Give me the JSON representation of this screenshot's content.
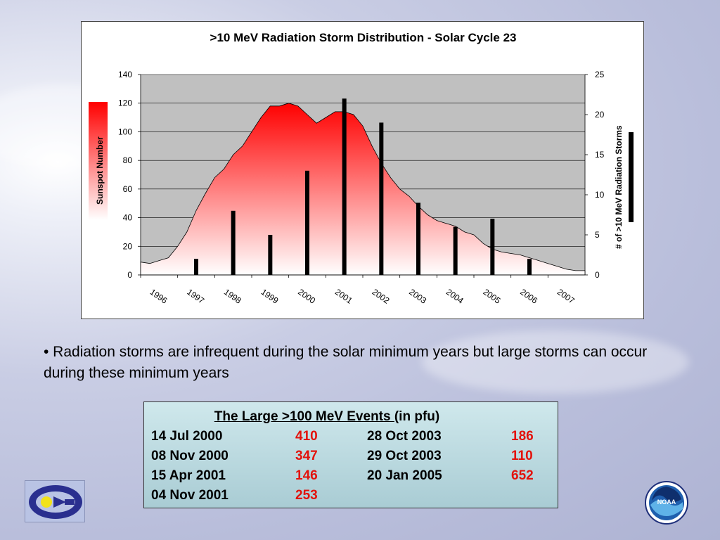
{
  "slide": {
    "bullet_text": "• Radiation storms are infrequent during the solar minimum years but large storms can occur during these minimum years"
  },
  "events_table": {
    "header_main": "The Large >100 MeV Events ",
    "header_suffix": "(in pfu)",
    "rows": [
      {
        "date1": "14 Jul 2000",
        "val1": "410",
        "date2": "28 Oct 2003",
        "val2": "186"
      },
      {
        "date1": "08 Nov 2000",
        "val1": "347",
        "date2": "29 Oct 2003",
        "val2": "110"
      },
      {
        "date1": "15 Apr 2001",
        "val1": "146",
        "date2": "20 Jan 2005",
        "val2": "652"
      },
      {
        "date1": "04 Nov 2001",
        "val1": "253",
        "date2": "",
        "val2": ""
      }
    ],
    "value_color": "#e3120b"
  },
  "logos": {
    "left_logo_icon": "sec-logo-icon",
    "right_logo_text": "NOAA"
  },
  "chart_data": {
    "type": "bar+area",
    "title": ">10 MeV Radiation Storm Distribution - Solar Cycle 23",
    "ylabel_left": "Sunspot Number",
    "ylabel_right": "# of >10 MeV Radiation Storms",
    "ylim_left": [
      0,
      140
    ],
    "yticks_left": [
      "0",
      "20",
      "40",
      "60",
      "80",
      "100",
      "120",
      "140"
    ],
    "ylim_right": [
      0,
      25
    ],
    "yticks_right": [
      "0",
      "5",
      "10",
      "15",
      "20",
      "25"
    ],
    "categories": [
      "1996",
      "1997",
      "1998",
      "1999",
      "2000",
      "2001",
      "2002",
      "2003",
      "2004",
      "2005",
      "2006",
      "2007"
    ],
    "storm_counts": [
      0,
      2,
      8,
      5,
      13,
      22,
      19,
      9,
      6,
      7,
      2,
      0
    ],
    "sunspot_series": {
      "x": [
        1996.0,
        1996.25,
        1996.5,
        1996.75,
        1997.0,
        1997.25,
        1997.5,
        1997.75,
        1998.0,
        1998.25,
        1998.5,
        1998.75,
        1999.0,
        1999.25,
        1999.5,
        1999.75,
        2000.0,
        2000.25,
        2000.5,
        2000.75,
        2001.0,
        2001.25,
        2001.5,
        2001.75,
        2002.0,
        2002.25,
        2002.5,
        2002.75,
        2003.0,
        2003.25,
        2003.5,
        2003.75,
        2004.0,
        2004.25,
        2004.5,
        2004.75,
        2005.0,
        2005.25,
        2005.5,
        2005.75,
        2006.0,
        2006.25,
        2006.5,
        2006.75,
        2007.0,
        2007.25,
        2007.5,
        2007.75
      ],
      "values": [
        9,
        8,
        10,
        12,
        20,
        30,
        45,
        57,
        68,
        74,
        84,
        90,
        100,
        110,
        118,
        118,
        120,
        118,
        112,
        106,
        110,
        114,
        114,
        112,
        104,
        90,
        78,
        68,
        60,
        55,
        48,
        42,
        38,
        36,
        34,
        30,
        28,
        22,
        18,
        16,
        15,
        14,
        12,
        10,
        8,
        6,
        4,
        3
      ]
    },
    "area_gradient": [
      "#ff0000",
      "#ffffff"
    ],
    "bar_color": "#000000",
    "plot_background": "#c0c0c0",
    "grid": true
  }
}
